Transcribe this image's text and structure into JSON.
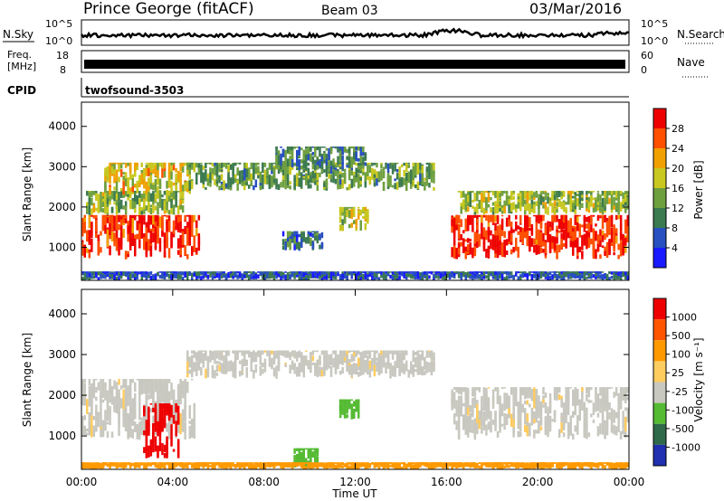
{
  "header": {
    "station": "Prince George (fitACF)",
    "beam": "Beam 03",
    "date": "03/Mar/2016"
  },
  "noise_panel": {
    "left_label": "N.Sky",
    "left_ticks": [
      "10^5",
      "10^0"
    ],
    "right_label": "N.Search",
    "right_ticks": [
      "10^5",
      "10^0"
    ]
  },
  "freq_panel": {
    "left_label_line1": "Freq.",
    "left_label_line2": "[MHz]",
    "left_ticks": [
      "18",
      "8"
    ],
    "right_label": "Nave",
    "right_ticks": [
      "60",
      "0"
    ]
  },
  "cpid_panel": {
    "label": "CPID",
    "program": "twofsound",
    "id": "-3503"
  },
  "x_axis": {
    "label": "Time UT",
    "ticks": [
      "00:00",
      "04:00",
      "08:00",
      "12:00",
      "16:00",
      "20:00",
      "00:00"
    ]
  },
  "power_panel": {
    "ylabel": "Slant Range [km]",
    "yticks": [
      "4000",
      "3000",
      "2000",
      "1000"
    ],
    "colorbar_label": "Power [dB]",
    "colorbar_ticks": [
      "28",
      "24",
      "20",
      "16",
      "12",
      "8",
      "4"
    ]
  },
  "velocity_panel": {
    "ylabel": "Slant Range [km]",
    "yticks": [
      "4000",
      "3000",
      "2000",
      "1000"
    ],
    "colorbar_label": "Velocity [m s⁻¹]",
    "colorbar_ticks": [
      "1000",
      "500",
      "100",
      "25",
      "-25",
      "-100",
      "-500",
      "-1000"
    ]
  },
  "chart_data": [
    {
      "type": "line",
      "title": "N.Sky / N.Search noise",
      "x_range_hours": [
        0,
        24
      ],
      "y_scale": "log",
      "y_range": [
        1,
        100000
      ],
      "approx_level_description": "near-flat trace with a raised hump 15:00-17:30 UT"
    },
    {
      "type": "bar",
      "title": "Freq. / Nave",
      "x_range_hours": [
        0,
        24
      ],
      "freq_range_mhz": [
        8,
        18
      ],
      "nave_range": [
        0,
        60
      ],
      "note": "dense solid band across the full day"
    },
    {
      "type": "heatmap",
      "quantity": "Power [dB]",
      "x_range_hours": [
        0,
        24
      ],
      "y_range_km": [
        180,
        4600
      ],
      "color_range": [
        0,
        30
      ],
      "colors": [
        "#1a1aff",
        "#2850c0",
        "#3c7a50",
        "#6fa040",
        "#c8c820",
        "#f0a000",
        "#ff5000",
        "#ee0000"
      ],
      "regions": [
        {
          "t": [
            0.0,
            5.2
          ],
          "r": [
            700,
            1800
          ],
          "value": 27
        },
        {
          "t": [
            0.2,
            4.5
          ],
          "r": [
            1800,
            2400
          ],
          "value": 14
        },
        {
          "t": [
            1.0,
            4.8
          ],
          "r": [
            2300,
            3100
          ],
          "value": 18
        },
        {
          "t": [
            4.6,
            15.5
          ],
          "r": [
            2400,
            3100
          ],
          "value": 12
        },
        {
          "t": [
            8.5,
            12.5
          ],
          "r": [
            2900,
            3500
          ],
          "value": 10
        },
        {
          "t": [
            11.3,
            12.6
          ],
          "r": [
            1400,
            2000
          ],
          "value": 16
        },
        {
          "t": [
            8.8,
            10.6
          ],
          "r": [
            900,
            1400
          ],
          "value": 8
        },
        {
          "t": [
            16.2,
            24.0
          ],
          "r": [
            700,
            1800
          ],
          "value": 27
        },
        {
          "t": [
            16.5,
            24.0
          ],
          "r": [
            1800,
            2400
          ],
          "value": 15
        },
        {
          "t": [
            0.0,
            24.0
          ],
          "r": [
            180,
            400
          ],
          "value": 6
        }
      ]
    },
    {
      "type": "heatmap",
      "quantity": "Velocity [m s⁻¹]",
      "x_range_hours": [
        0,
        24
      ],
      "y_range_km": [
        180,
        4600
      ],
      "color_levels": [
        1000,
        500,
        100,
        25,
        -25,
        -100,
        -500,
        -1000
      ],
      "colors": [
        "#2030b0",
        "#2f6a4a",
        "#55bb33",
        "#c8c8c0",
        "#ffcc60",
        "#ff9900",
        "#ff5500",
        "#ee0000"
      ],
      "regions": [
        {
          "t": [
            0.0,
            5.0
          ],
          "r": [
            900,
            2400
          ],
          "value": 0
        },
        {
          "t": [
            4.6,
            15.5
          ],
          "r": [
            2400,
            3100
          ],
          "value": 0
        },
        {
          "t": [
            16.2,
            24.0
          ],
          "r": [
            900,
            2200
          ],
          "value": 0
        },
        {
          "t": [
            2.7,
            4.3
          ],
          "r": [
            400,
            1800
          ],
          "value": -600
        },
        {
          "t": [
            11.3,
            12.2
          ],
          "r": [
            1400,
            1900
          ],
          "value": 300
        },
        {
          "t": [
            9.3,
            10.4
          ],
          "r": [
            200,
            700
          ],
          "value": 200
        },
        {
          "t": [
            0.0,
            24.0
          ],
          "r": [
            180,
            350
          ],
          "value": -60
        }
      ]
    }
  ]
}
